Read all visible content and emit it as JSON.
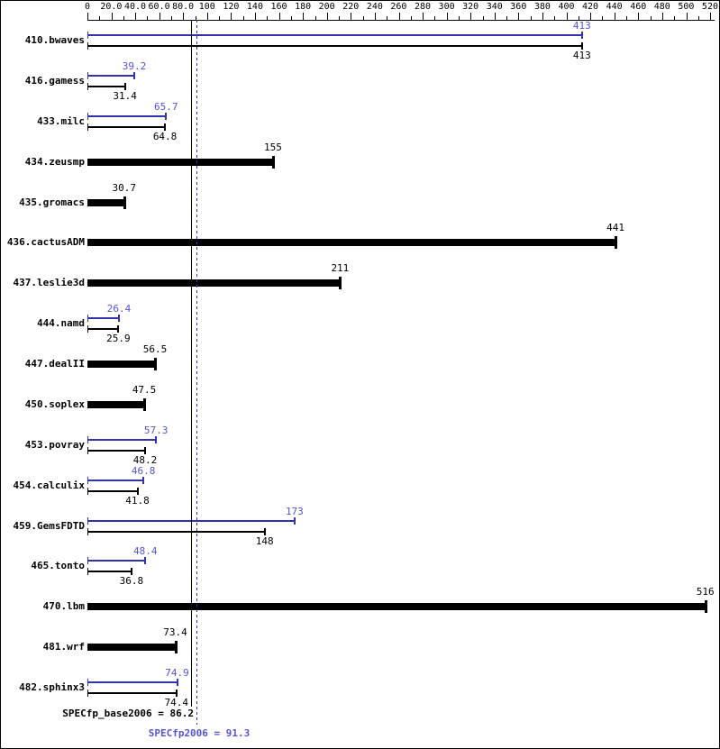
{
  "chart_data": {
    "type": "bar",
    "orientation": "horizontal",
    "axis": {
      "xlim": [
        0,
        520
      ],
      "major_tick_step": 20,
      "minor_tick_step": 10,
      "major_tick_labels": [
        "0",
        "20.0",
        "40.0",
        "60.0",
        "80.0",
        "100",
        "120",
        "140",
        "160",
        "180",
        "200",
        "220",
        "240",
        "260",
        "280",
        "300",
        "320",
        "340",
        "360",
        "380",
        "400",
        "420",
        "440",
        "460",
        "480",
        "500",
        "520"
      ]
    },
    "series_meaning": {
      "peak": "SPECfp2006 (peak) result, blue thin bar",
      "base": "SPECfp_base2006 result, black bar (thick when base-only)"
    },
    "benchmarks": [
      {
        "name": "410.bwaves",
        "peak": "413",
        "base": "413"
      },
      {
        "name": "416.gamess",
        "peak": "39.2",
        "base": "31.4"
      },
      {
        "name": "433.milc",
        "peak": "65.7",
        "base": "64.8"
      },
      {
        "name": "434.zeusmp",
        "peak": null,
        "base": "155"
      },
      {
        "name": "435.gromacs",
        "peak": null,
        "base": "30.7"
      },
      {
        "name": "436.cactusADM",
        "peak": null,
        "base": "441"
      },
      {
        "name": "437.leslie3d",
        "peak": null,
        "base": "211"
      },
      {
        "name": "444.namd",
        "peak": "26.4",
        "base": "25.9"
      },
      {
        "name": "447.dealII",
        "peak": null,
        "base": "56.5"
      },
      {
        "name": "450.soplex",
        "peak": null,
        "base": "47.5"
      },
      {
        "name": "453.povray",
        "peak": "57.3",
        "base": "48.2"
      },
      {
        "name": "454.calculix",
        "peak": "46.8",
        "base": "41.8"
      },
      {
        "name": "459.GemsFDTD",
        "peak": "173",
        "base": "148"
      },
      {
        "name": "465.tonto",
        "peak": "48.4",
        "base": "36.8"
      },
      {
        "name": "470.lbm",
        "peak": null,
        "base": "516"
      },
      {
        "name": "481.wrf",
        "peak": null,
        "base": "73.4"
      },
      {
        "name": "482.sphinx3",
        "peak": "74.9",
        "base": "74.4"
      }
    ],
    "reference_lines": {
      "base_mean": 86.2,
      "peak_mean": 91.3,
      "base_style": "solid",
      "peak_style": "dotted"
    },
    "footer": {
      "base_label": "SPECfp_base2006 = 86.2",
      "peak_label": "SPECfp2006 = 91.3"
    },
    "colors": {
      "base": "#000000",
      "peak_bar": "#3333aa",
      "peak_text": "#5555cc"
    }
  }
}
